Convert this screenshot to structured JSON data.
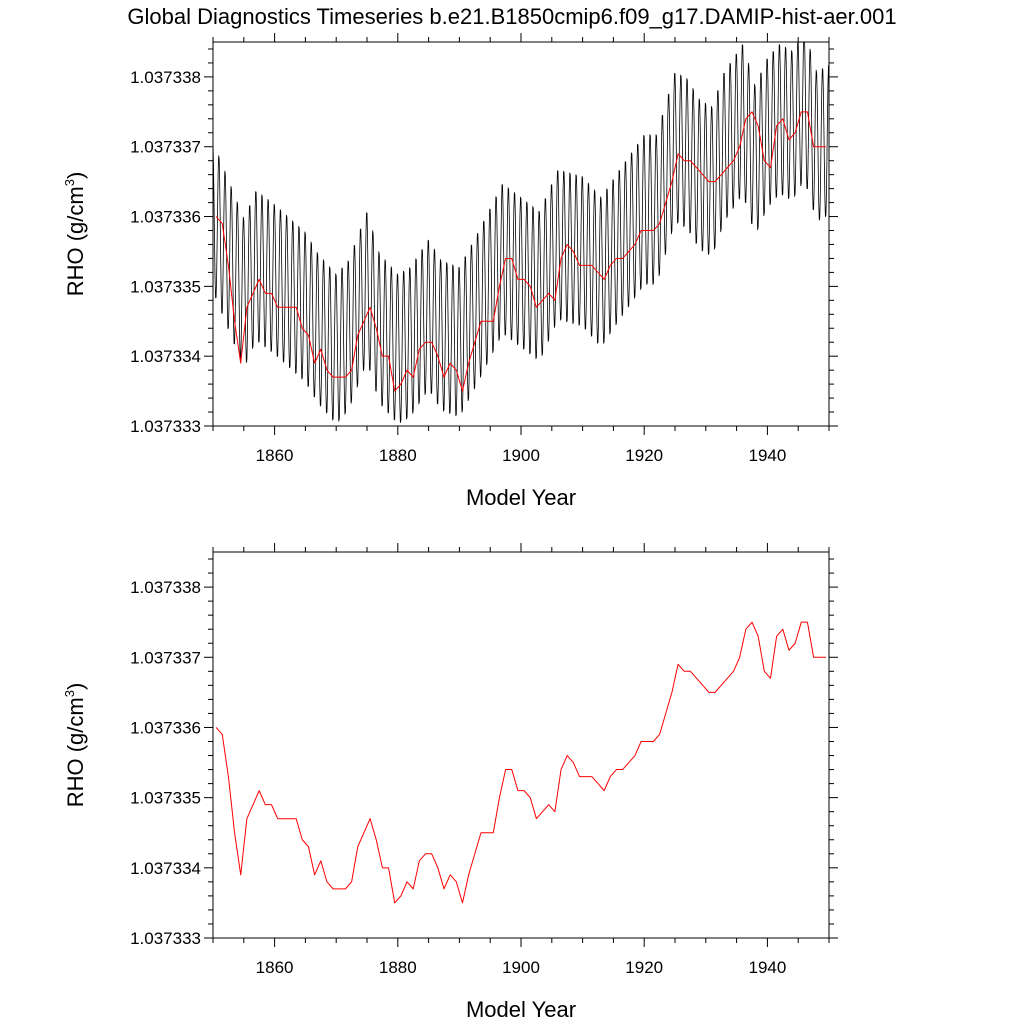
{
  "title": "Global Diagnostics Timeseries b.e21.B1850cmip6.f09_g17.DAMIP-hist-aer.001",
  "colors": {
    "monthly": "#000000",
    "annual": "#ff0000",
    "axis": "#000000",
    "background": "#ffffff"
  },
  "chart_data": [
    {
      "type": "line",
      "xlabel": "Model Year",
      "ylabel_main": "RHO (g/cm",
      "ylabel_sup": "3",
      "ylabel_close": ")",
      "xlim": [
        1850,
        1950
      ],
      "ylim": [
        1.037333,
        1.0373385
      ],
      "xticks": [
        1860,
        1880,
        1900,
        1920,
        1940
      ],
      "xtick_labels": [
        "1860",
        "1880",
        "1900",
        "1920",
        "1940"
      ],
      "yticks": [
        1.037333,
        1.037334,
        1.037335,
        1.037336,
        1.037337,
        1.037338
      ],
      "ytick_labels": [
        "1.037333",
        "1.037334",
        "1.037335",
        "1.037336",
        "1.037337",
        "1.037338"
      ],
      "grid": false,
      "series": [
        {
          "role": "monthly",
          "color": "#000000",
          "x_start": 1850.0,
          "x_step": 0.0833333,
          "anchors_x": [
            1850,
            1855,
            1857,
            1860,
            1865,
            1867,
            1870,
            1872,
            1875,
            1877,
            1880,
            1882,
            1885,
            1887,
            1890,
            1893,
            1897,
            1900,
            1903,
            1906,
            1910,
            1913,
            1916,
            1920,
            1922,
            1925,
            1927,
            1929,
            1931,
            1933,
            1936,
            1938,
            1940,
            1942,
            1944,
            1946,
            1948,
            1950
          ],
          "anchors_y": [
            1.037336,
            1.0373349,
            1.0373353,
            1.0373351,
            1.0373347,
            1.0373344,
            1.0373341,
            1.0373343,
            1.037335,
            1.0373344,
            1.0373341,
            1.0373342,
            1.0373346,
            1.0373343,
            1.0373342,
            1.0373347,
            1.0373354,
            1.0373352,
            1.037335,
            1.0373356,
            1.0373355,
            1.0373352,
            1.0373356,
            1.0373361,
            1.0373361,
            1.037337,
            1.0373369,
            1.0373366,
            1.0373365,
            1.037337,
            1.0373374,
            1.0373368,
            1.0373372,
            1.0373374,
            1.0373373,
            1.0373376,
            1.037337,
            1.0373371
          ],
          "seasonal_amplitude": 1.1e-06
        },
        {
          "role": "annual-mean",
          "color": "#ff0000",
          "x": [
            1850.5,
            1851.5,
            1852.5,
            1853.5,
            1854.5,
            1855.5,
            1856.5,
            1857.5,
            1858.5,
            1859.5,
            1860.5,
            1861.5,
            1862.5,
            1863.5,
            1864.5,
            1865.5,
            1866.5,
            1867.5,
            1868.5,
            1869.5,
            1870.5,
            1871.5,
            1872.5,
            1873.5,
            1874.5,
            1875.5,
            1876.5,
            1877.5,
            1878.5,
            1879.5,
            1880.5,
            1881.5,
            1882.5,
            1883.5,
            1884.5,
            1885.5,
            1886.5,
            1887.5,
            1888.5,
            1889.5,
            1890.5,
            1891.5,
            1892.5,
            1893.5,
            1894.5,
            1895.5,
            1896.5,
            1897.5,
            1898.5,
            1899.5,
            1900.5,
            1901.5,
            1902.5,
            1903.5,
            1904.5,
            1905.5,
            1906.5,
            1907.5,
            1908.5,
            1909.5,
            1910.5,
            1911.5,
            1912.5,
            1913.5,
            1914.5,
            1915.5,
            1916.5,
            1917.5,
            1918.5,
            1919.5,
            1920.5,
            1921.5,
            1922.5,
            1923.5,
            1924.5,
            1925.5,
            1926.5,
            1927.5,
            1928.5,
            1929.5,
            1930.5,
            1931.5,
            1932.5,
            1933.5,
            1934.5,
            1935.5,
            1936.5,
            1937.5,
            1938.5,
            1939.5,
            1940.5,
            1941.5,
            1942.5,
            1943.5,
            1944.5,
            1945.5,
            1946.5,
            1947.5,
            1948.5,
            1949.5
          ],
          "values": [
            1.037336,
            1.0373359,
            1.0373353,
            1.0373345,
            1.0373339,
            1.0373347,
            1.0373349,
            1.0373351,
            1.0373349,
            1.0373349,
            1.0373347,
            1.0373347,
            1.0373347,
            1.0373347,
            1.0373344,
            1.0373343,
            1.0373339,
            1.0373341,
            1.0373338,
            1.0373337,
            1.0373337,
            1.0373337,
            1.0373338,
            1.0373343,
            1.0373345,
            1.0373347,
            1.0373344,
            1.037334,
            1.037334,
            1.0373335,
            1.0373336,
            1.0373338,
            1.0373337,
            1.0373341,
            1.0373342,
            1.0373342,
            1.037334,
            1.0373337,
            1.0373339,
            1.0373338,
            1.0373335,
            1.0373339,
            1.0373342,
            1.0373345,
            1.0373345,
            1.0373345,
            1.037335,
            1.0373354,
            1.0373354,
            1.0373351,
            1.0373351,
            1.037335,
            1.0373347,
            1.0373348,
            1.0373349,
            1.0373348,
            1.0373354,
            1.0373356,
            1.0373355,
            1.0373353,
            1.0373353,
            1.0373353,
            1.0373352,
            1.0373351,
            1.0373353,
            1.0373354,
            1.0373354,
            1.0373355,
            1.0373356,
            1.0373358,
            1.0373358,
            1.0373358,
            1.0373359,
            1.0373362,
            1.0373365,
            1.0373369,
            1.0373368,
            1.0373368,
            1.0373367,
            1.0373366,
            1.0373365,
            1.0373365,
            1.0373366,
            1.0373367,
            1.0373368,
            1.037337,
            1.0373374,
            1.0373375,
            1.0373373,
            1.0373368,
            1.0373367,
            1.0373373,
            1.0373374,
            1.0373371,
            1.0373372,
            1.0373375,
            1.0373375,
            1.037337,
            1.037337,
            1.037337
          ]
        }
      ]
    },
    {
      "type": "line",
      "xlabel": "Model Year",
      "ylabel_main": "RHO (g/cm",
      "ylabel_sup": "3",
      "ylabel_close": ")",
      "xlim": [
        1850,
        1950
      ],
      "ylim": [
        1.037333,
        1.0373385
      ],
      "xticks": [
        1860,
        1880,
        1900,
        1920,
        1940
      ],
      "xtick_labels": [
        "1860",
        "1880",
        "1900",
        "1920",
        "1940"
      ],
      "yticks": [
        1.037333,
        1.037334,
        1.037335,
        1.037336,
        1.037337,
        1.037338
      ],
      "ytick_labels": [
        "1.037333",
        "1.037334",
        "1.037335",
        "1.037336",
        "1.037337",
        "1.037338"
      ],
      "grid": false,
      "series": [
        {
          "role": "annual-mean",
          "color": "#ff0000",
          "same_as_panel": 0
        }
      ]
    }
  ]
}
